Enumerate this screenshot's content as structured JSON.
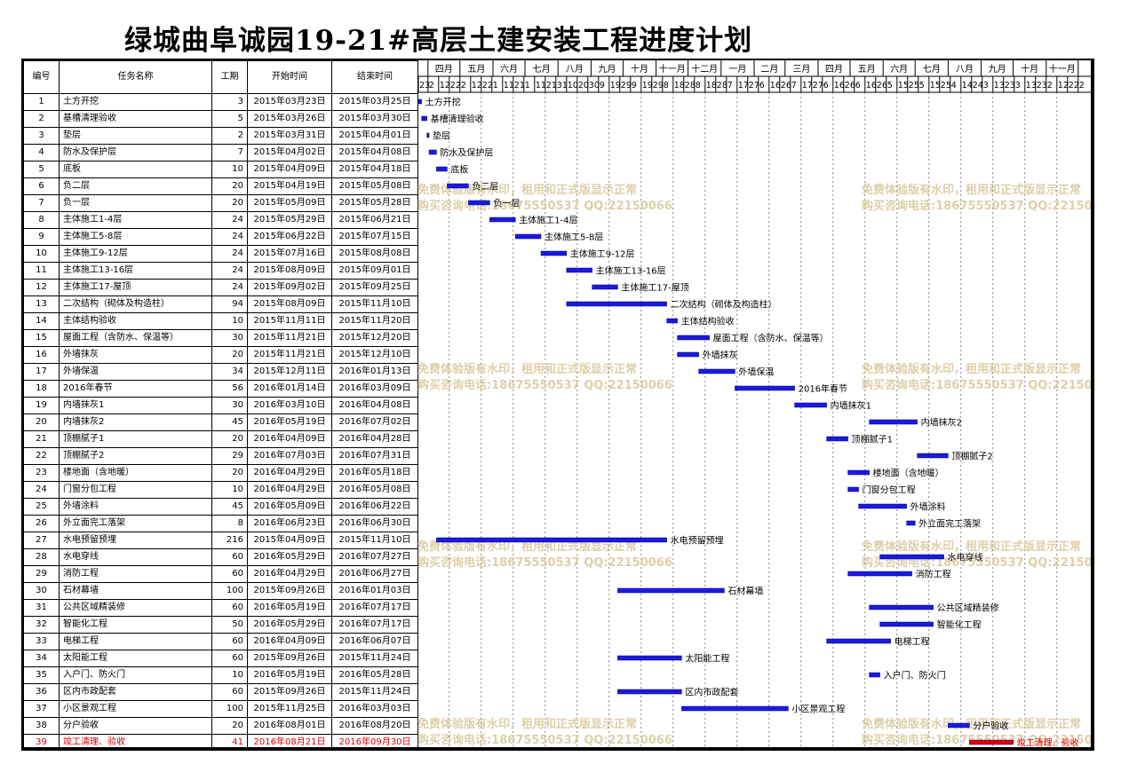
{
  "title": "绿城曲阜诚园19-21#高层土建安装工程进度计划",
  "columns": {
    "id": "编号",
    "name": "任务名称",
    "duration": "工期",
    "start": "开始时间",
    "end": "结束时间"
  },
  "months": [
    "四月",
    "五月",
    "六月",
    "七月",
    "八月",
    "九月",
    "十月",
    "十一月",
    "十二月",
    "一月",
    "二月",
    "三月",
    "四月",
    "五月",
    "六月",
    "七月",
    "八月",
    "九月",
    "十月",
    "十一月"
  ],
  "day_ticks": [
    "23",
    "2",
    "12",
    "22",
    "2",
    "12",
    "22",
    "1",
    "11",
    "21",
    "1",
    "11",
    "21",
    "31",
    "10",
    "20",
    "30",
    "9",
    "19",
    "29",
    "9",
    "19",
    "29",
    "8",
    "18",
    "28",
    "8",
    "18",
    "28",
    "7",
    "17",
    "27",
    "6",
    "16",
    "26",
    "7",
    "17",
    "27",
    "6",
    "16",
    "26",
    "6",
    "16",
    "26",
    "5",
    "15",
    "25",
    "5",
    "15",
    "25",
    "4",
    "14",
    "24",
    "3",
    "13",
    "23",
    "3",
    "13",
    "23",
    "2",
    "12",
    "22",
    "2"
  ],
  "watermark": {
    "line1": "免费体验版有水印，租用和正式版显示正常",
    "line2": "购买咨询电话:18675550537 QQ:22150066"
  },
  "tasks": [
    {
      "id": "1",
      "name": "土方开挖",
      "duration": "3",
      "start": "2015年03月23日",
      "end": "2015年03月25日",
      "label": "土方开挖"
    },
    {
      "id": "2",
      "name": "基槽清理验收",
      "duration": "5",
      "start": "2015年03月26日",
      "end": "2015年03月30日",
      "label": "基槽清理验收"
    },
    {
      "id": "3",
      "name": "垫层",
      "duration": "2",
      "start": "2015年03月31日",
      "end": "2015年04月01日",
      "label": "垫层"
    },
    {
      "id": "4",
      "name": "防水及保护层",
      "duration": "7",
      "start": "2015年04月02日",
      "end": "2015年04月08日",
      "label": "防水及保护层"
    },
    {
      "id": "5",
      "name": "底板",
      "duration": "10",
      "start": "2015年04月09日",
      "end": "2015年04月18日",
      "label": "底板"
    },
    {
      "id": "6",
      "name": "负二层",
      "duration": "20",
      "start": "2015年04月19日",
      "end": "2015年05月08日",
      "label": "负二层"
    },
    {
      "id": "7",
      "name": "负一层",
      "duration": "20",
      "start": "2015年05月09日",
      "end": "2015年05月28日",
      "label": "负一层"
    },
    {
      "id": "8",
      "name": "主体施工1-4层",
      "duration": "24",
      "start": "2015年05月29日",
      "end": "2015年06月21日",
      "label": "主体施工1-4层"
    },
    {
      "id": "9",
      "name": "主体施工5-8层",
      "duration": "24",
      "start": "2015年06月22日",
      "end": "2015年07月15日",
      "label": "主体施工5-8层"
    },
    {
      "id": "10",
      "name": "主体施工9-12层",
      "duration": "24",
      "start": "2015年07月16日",
      "end": "2015年08月08日",
      "label": "主体施工9-12层"
    },
    {
      "id": "11",
      "name": "主体施工13-16层",
      "duration": "24",
      "start": "2015年08月09日",
      "end": "2015年09月01日",
      "label": "主体施工13-16层"
    },
    {
      "id": "12",
      "name": "主体施工17-屋顶",
      "duration": "24",
      "start": "2015年09月02日",
      "end": "2015年09月25日",
      "label": "主体施工17-屋顶"
    },
    {
      "id": "13",
      "name": "二次结构（砌体及构造柱）",
      "duration": "94",
      "start": "2015年08月09日",
      "end": "2015年11月10日",
      "label": "二次结构（砌体及构造柱）"
    },
    {
      "id": "14",
      "name": "主体结构验收",
      "duration": "10",
      "start": "2015年11月11日",
      "end": "2015年11月20日",
      "label": "主体结构验收"
    },
    {
      "id": "15",
      "name": "屋面工程（含防水、保温等）",
      "duration": "30",
      "start": "2015年11月21日",
      "end": "2015年12月20日",
      "label": "屋面工程（含防水、保温等）"
    },
    {
      "id": "16",
      "name": "外墙抹灰",
      "duration": "20",
      "start": "2015年11月21日",
      "end": "2015年12月10日",
      "label": "外墙抹灰"
    },
    {
      "id": "17",
      "name": "外墙保温",
      "duration": "34",
      "start": "2015年12月11日",
      "end": "2016年01月13日",
      "label": "外墙保温"
    },
    {
      "id": "18",
      "name": "2016年春节",
      "duration": "56",
      "start": "2016年01月14日",
      "end": "2016年03月09日",
      "label": "2016年春节"
    },
    {
      "id": "19",
      "name": "内墙抹灰1",
      "duration": "30",
      "start": "2016年03月10日",
      "end": "2016年04月08日",
      "label": "内墙抹灰1"
    },
    {
      "id": "20",
      "name": "内墙抹灰2",
      "duration": "45",
      "start": "2016年05月19日",
      "end": "2016年07月02日",
      "label": "内墙抹灰2"
    },
    {
      "id": "21",
      "name": "顶棚腻子1",
      "duration": "20",
      "start": "2016年04月09日",
      "end": "2016年04月28日",
      "label": "顶棚腻子1"
    },
    {
      "id": "22",
      "name": "顶棚腻子2",
      "duration": "29",
      "start": "2016年07月03日",
      "end": "2016年07月31日",
      "label": "顶棚腻子2"
    },
    {
      "id": "23",
      "name": "楼地面（含地暖）",
      "duration": "20",
      "start": "2016年04月29日",
      "end": "2016年05月18日",
      "label": "楼地面（含地暖）"
    },
    {
      "id": "24",
      "name": "门窗分包工程",
      "duration": "10",
      "start": "2016年04月29日",
      "end": "2016年05月08日",
      "label": "门窗分包工程"
    },
    {
      "id": "25",
      "name": "外墙涂料",
      "duration": "45",
      "start": "2016年05月09日",
      "end": "2016年06月22日",
      "label": "外墙涂料"
    },
    {
      "id": "26",
      "name": "外立面完工落架",
      "duration": "8",
      "start": "2016年06月23日",
      "end": "2016年06月30日",
      "label": "外立面完工落架"
    },
    {
      "id": "27",
      "name": "水电预留预埋",
      "duration": "216",
      "start": "2015年04月09日",
      "end": "2015年11月10日",
      "label": "水电预留预埋"
    },
    {
      "id": "28",
      "name": "水电穿线",
      "duration": "60",
      "start": "2016年05月29日",
      "end": "2016年07月27日",
      "label": "水电穿线"
    },
    {
      "id": "29",
      "name": "消防工程",
      "duration": "60",
      "start": "2016年04月29日",
      "end": "2016年06月27日",
      "label": "消防工程"
    },
    {
      "id": "30",
      "name": "石材幕墙",
      "duration": "100",
      "start": "2015年09月26日",
      "end": "2016年01月03日",
      "label": "石材幕墙"
    },
    {
      "id": "31",
      "name": "公共区域精装修",
      "duration": "60",
      "start": "2016年05月19日",
      "end": "2016年07月17日",
      "label": "公共区域精装修"
    },
    {
      "id": "32",
      "name": "智能化工程",
      "duration": "50",
      "start": "2016年05月29日",
      "end": "2016年07月17日",
      "label": "智能化工程"
    },
    {
      "id": "33",
      "name": "电梯工程",
      "duration": "60",
      "start": "2016年04月09日",
      "end": "2016年06月07日",
      "label": "电梯工程"
    },
    {
      "id": "34",
      "name": "太阳能工程",
      "duration": "60",
      "start": "2015年09月26日",
      "end": "2015年11月24日",
      "label": "太阳能工程"
    },
    {
      "id": "35",
      "name": "入户门、防火门",
      "duration": "10",
      "start": "2016年05月19日",
      "end": "2016年05月28日",
      "label": "入户门、防火门"
    },
    {
      "id": "36",
      "name": "区内市政配套",
      "duration": "60",
      "start": "2015年09月26日",
      "end": "2015年11月24日",
      "label": "区内市政配套"
    },
    {
      "id": "37",
      "name": "小区景观工程",
      "duration": "100",
      "start": "2015年11月25日",
      "end": "2016年03月03日",
      "label": "小区景观工程"
    },
    {
      "id": "38",
      "name": "分户验收",
      "duration": "20",
      "start": "2016年08月01日",
      "end": "2016年08月20日",
      "label": "分户验收"
    },
    {
      "id": "39",
      "name": "竣工清理、验收",
      "duration": "41",
      "start": "2016年08月21日",
      "end": "2016年09月30日",
      "label": "竣工清理、验收",
      "critical": true
    }
  ],
  "colors": {
    "bar": "#1a1adf",
    "critical": "#e00000",
    "watermark": "#d8c79a"
  }
}
